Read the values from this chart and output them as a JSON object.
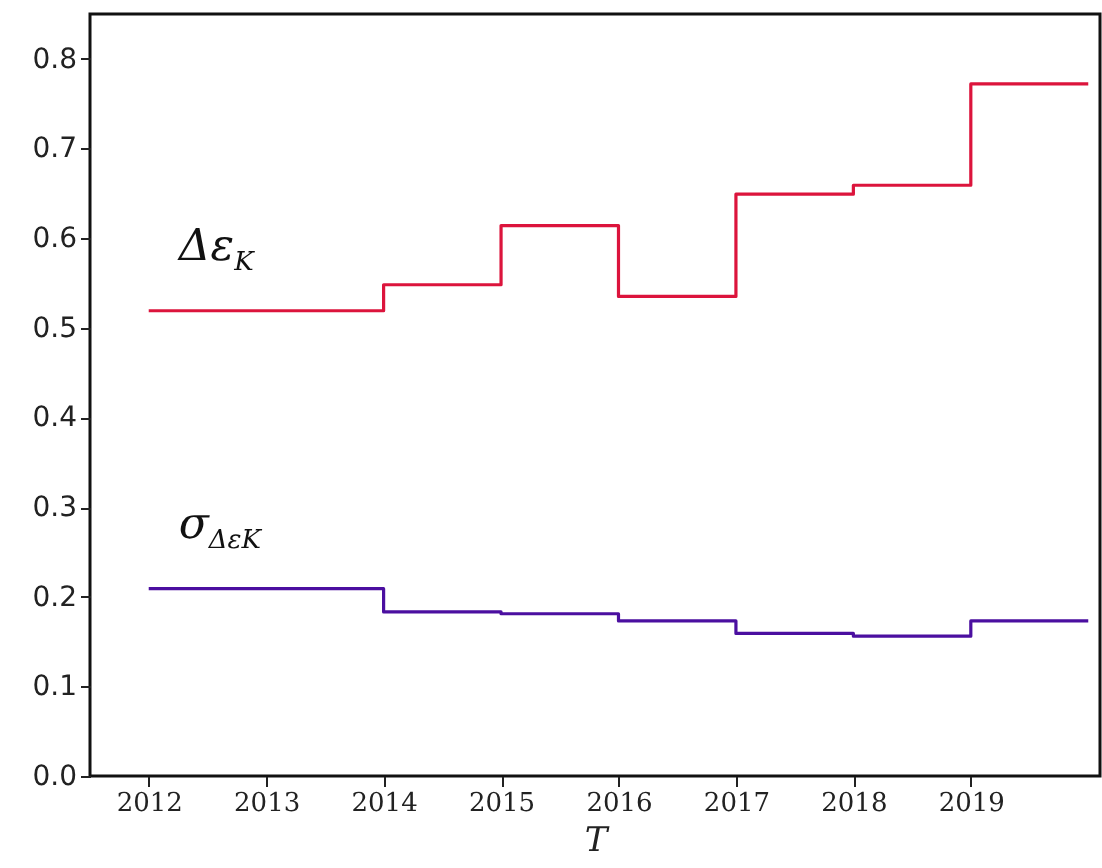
{
  "chart_data": {
    "type": "step",
    "xlabel": "T",
    "x": [
      2012,
      2014,
      2015,
      2016,
      2017,
      2018,
      2019,
      2020
    ],
    "series": [
      {
        "name": "Δε$_{K}$",
        "color": "#dc143c",
        "values": [
          0.519,
          0.548,
          0.614,
          0.535,
          0.649,
          0.659,
          0.772,
          0.772
        ]
      },
      {
        "name": "σ$_{ΔεK}$",
        "color": "#4b0fa0",
        "values": [
          0.209,
          0.183,
          0.181,
          0.173,
          0.159,
          0.156,
          0.173,
          0.173
        ]
      }
    ],
    "xlim": [
      2011.5,
      2020.1
    ],
    "ylim": [
      0,
      0.85
    ],
    "xticks": [
      2012,
      2013,
      2014,
      2015,
      2016,
      2017,
      2018,
      2019
    ],
    "yticks": [
      {
        "value": 0,
        "label": "0.0"
      },
      0.1,
      0.2,
      0.3,
      0.4,
      0.5,
      0.6,
      0.7,
      0.8
    ],
    "grid": false
  }
}
